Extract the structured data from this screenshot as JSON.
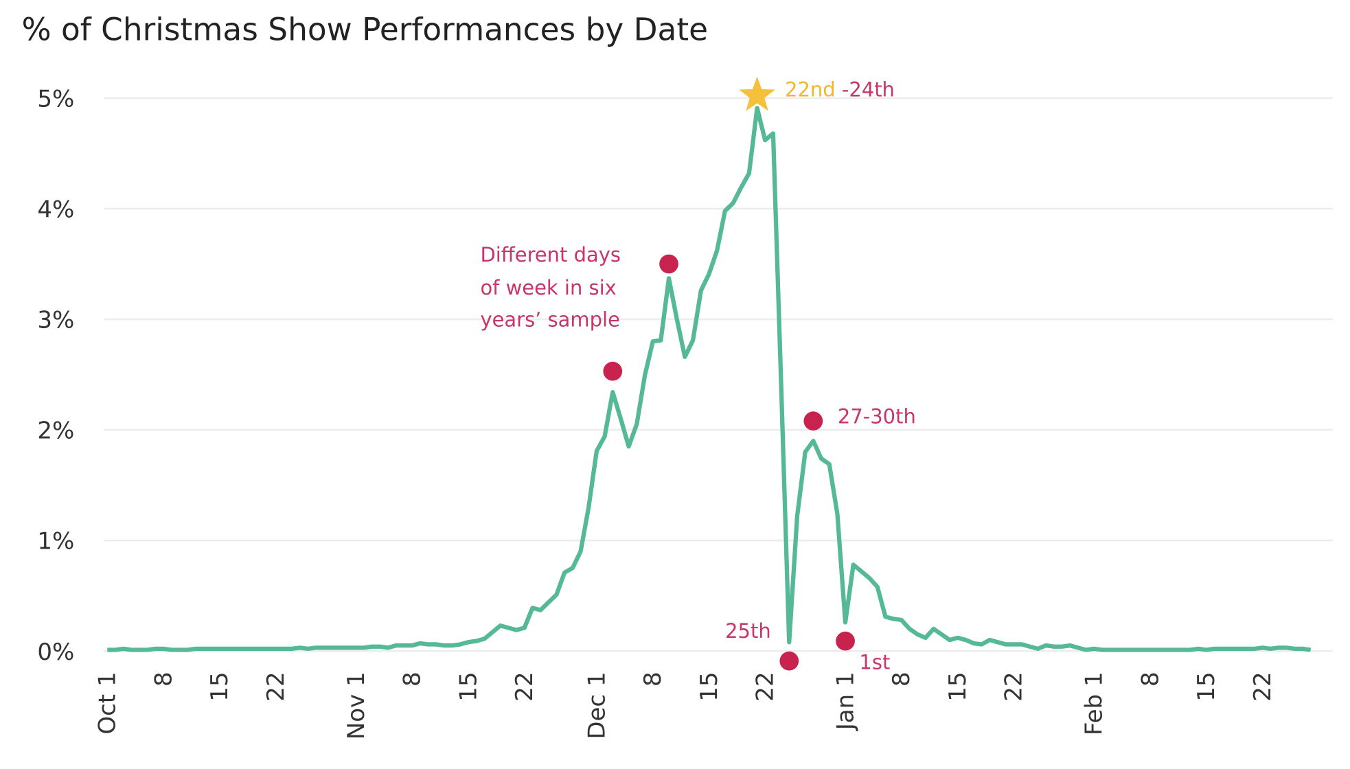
{
  "chart_data": {
    "type": "line",
    "title": "% of Christmas Show Performances by Date",
    "xlabel": "",
    "ylabel": "",
    "ylim": [
      0,
      5
    ],
    "y_ticks": [
      "0%",
      "1%",
      "2%",
      "3%",
      "4%",
      "5%"
    ],
    "grid": "horizontal",
    "x_ticks": [
      {
        "label": "Oct 1",
        "date": "Oct 1"
      },
      {
        "label": "8",
        "date": "Oct 8"
      },
      {
        "label": "15",
        "date": "Oct 15"
      },
      {
        "label": "22",
        "date": "Oct 22"
      },
      {
        "label": "Nov 1",
        "date": "Nov 1"
      },
      {
        "label": "8",
        "date": "Nov 8"
      },
      {
        "label": "15",
        "date": "Nov 15"
      },
      {
        "label": "22",
        "date": "Nov 22"
      },
      {
        "label": "Dec 1",
        "date": "Dec 1"
      },
      {
        "label": "8",
        "date": "Dec 8"
      },
      {
        "label": "15",
        "date": "Dec 15"
      },
      {
        "label": "22",
        "date": "Dec 22"
      },
      {
        "label": "Jan 1",
        "date": "Jan 1"
      },
      {
        "label": "8",
        "date": "Jan 8"
      },
      {
        "label": "15",
        "date": "Jan 15"
      },
      {
        "label": "22",
        "date": "Jan 22"
      },
      {
        "label": "Feb 1",
        "date": "Feb 1"
      },
      {
        "label": "8",
        "date": "Feb 8"
      },
      {
        "label": "15",
        "date": "Feb 15"
      },
      {
        "label": "22",
        "date": "Feb 22"
      }
    ],
    "series": [
      {
        "color": "#55b997",
        "values_by_month": {
          "Oct": [
            0.01,
            0.01,
            0.02,
            0.01,
            0.01,
            0.01,
            0.02,
            0.02,
            0.01,
            0.01,
            0.01,
            0.02,
            0.02,
            0.02,
            0.02,
            0.02,
            0.02,
            0.02,
            0.02,
            0.02,
            0.02,
            0.02,
            0.02,
            0.02,
            0.03,
            0.02,
            0.03,
            0.03,
            0.03,
            0.03,
            0.03
          ],
          "Nov": [
            0.03,
            0.03,
            0.04,
            0.04,
            0.03,
            0.05,
            0.05,
            0.05,
            0.07,
            0.06,
            0.06,
            0.05,
            0.05,
            0.06,
            0.08,
            0.09,
            0.11,
            0.17,
            0.23,
            0.21,
            0.19,
            0.21,
            0.39,
            0.37,
            0.44,
            0.51,
            0.71,
            0.75,
            0.9,
            1.3
          ],
          "Dec": [
            1.81,
            1.94,
            2.34,
            2.1,
            1.85,
            2.05,
            2.49,
            2.8,
            2.81,
            3.37,
            3.0,
            2.66,
            2.81,
            3.26,
            3.41,
            3.62,
            3.98,
            4.05,
            4.19,
            4.32,
            4.91,
            4.62,
            4.68,
            2.4,
            0.08,
            1.22,
            1.8,
            1.9,
            1.74,
            1.69,
            1.24
          ],
          "Jan": [
            0.26,
            0.78,
            0.72,
            0.66,
            0.58,
            0.31,
            0.29,
            0.28,
            0.2,
            0.15,
            0.12,
            0.2,
            0.15,
            0.1,
            0.12,
            0.1,
            0.07,
            0.06,
            0.1,
            0.08,
            0.06,
            0.06,
            0.06,
            0.04,
            0.02,
            0.05,
            0.04,
            0.04,
            0.05,
            0.03,
            0.01
          ],
          "Feb": [
            0.02,
            0.01,
            0.01,
            0.01,
            0.01,
            0.01,
            0.01,
            0.01,
            0.01,
            0.01,
            0.01,
            0.01,
            0.01,
            0.02,
            0.01,
            0.02,
            0.02,
            0.02,
            0.02,
            0.02,
            0.02,
            0.03,
            0.02,
            0.03,
            0.03,
            0.02,
            0.02,
            0.01
          ]
        }
      }
    ],
    "annotations": {
      "peak": {
        "date": "Dec 21",
        "value": 5.0,
        "marker": "star",
        "color": "#f5c03a",
        "label_part1": "22nd",
        "label_part2": " -24th"
      },
      "dots": [
        {
          "date": "Dec 3",
          "value": 2.53
        },
        {
          "date": "Dec 10",
          "value": 3.5
        },
        {
          "date": "Dec 28",
          "value": 2.08
        },
        {
          "date": "Dec 25",
          "value": -0.09
        },
        {
          "date": "Jan 1",
          "value": 0.09
        }
      ],
      "dot_color": "#c8234f",
      "note_lines": [
        "Different days",
        "of week in six",
        "years’ sample"
      ],
      "label_27_30": "27-30th",
      "label_25": "25th",
      "label_1st": "1st"
    }
  }
}
